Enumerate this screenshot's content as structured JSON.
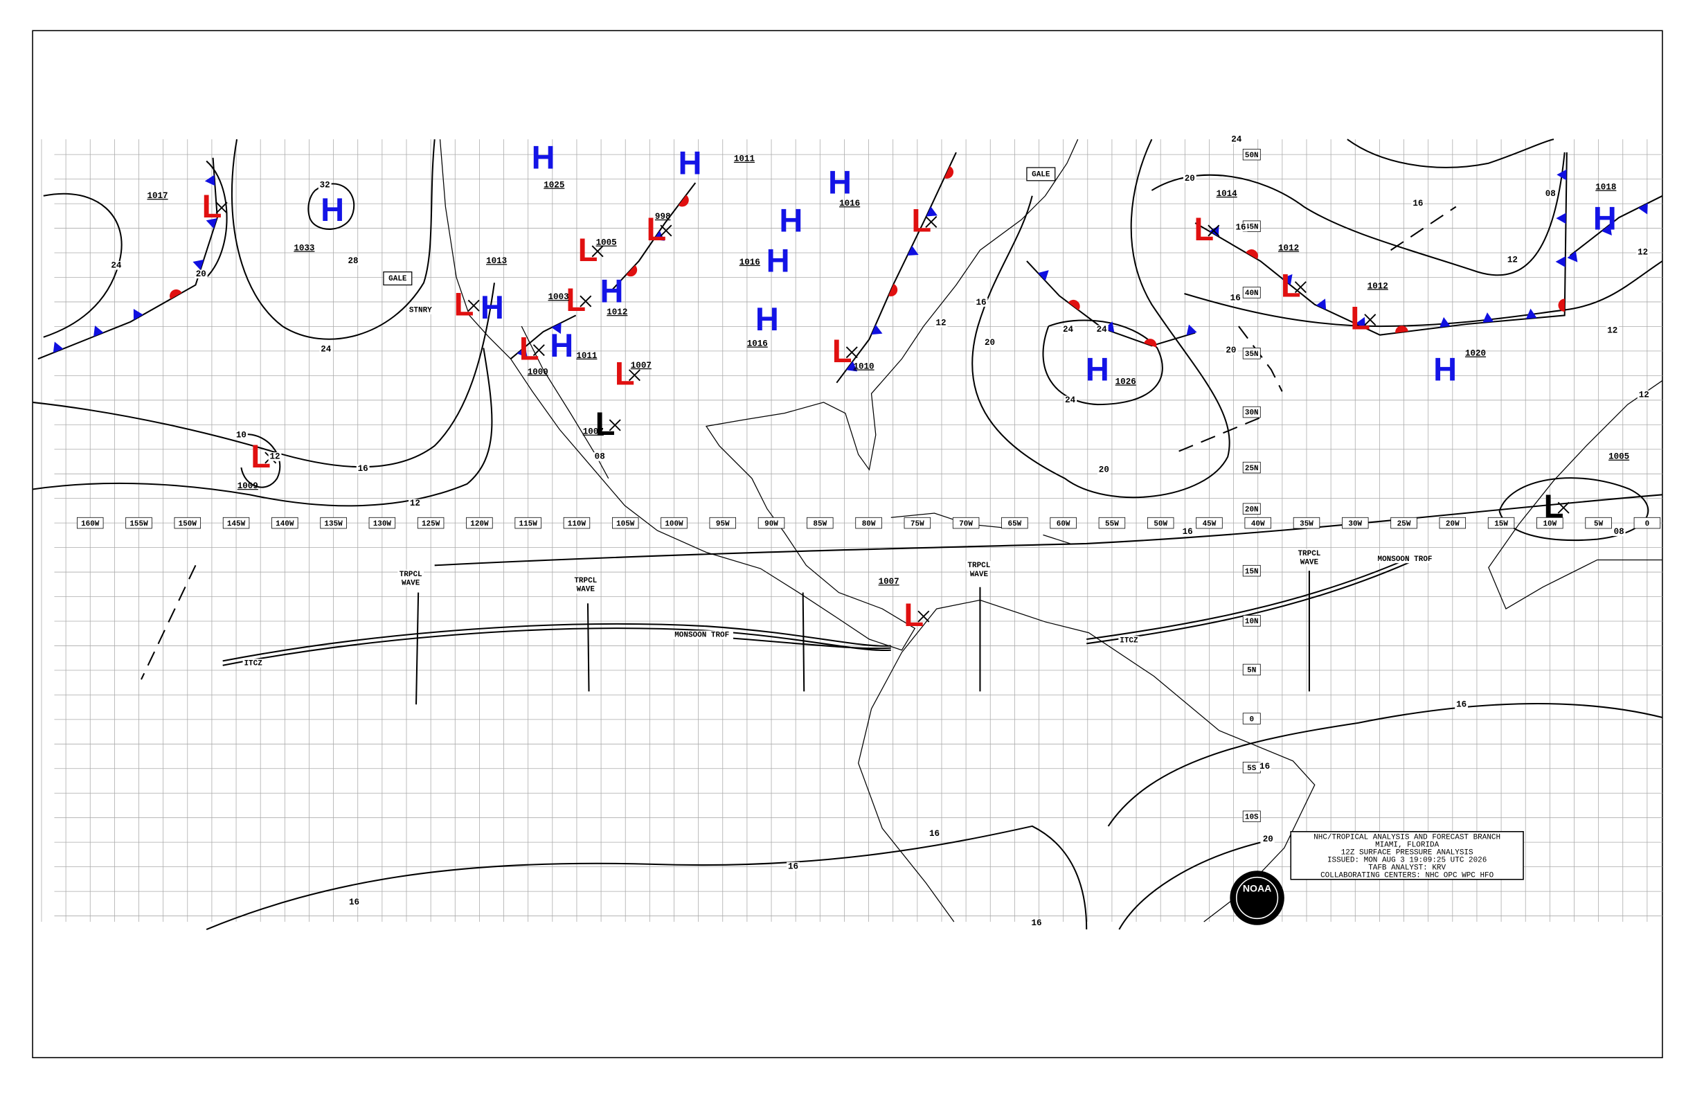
{
  "map": {
    "longitude_labels": [
      "160W",
      "155W",
      "150W",
      "145W",
      "140W",
      "135W",
      "130W",
      "125W",
      "120W",
      "115W",
      "110W",
      "105W",
      "100W",
      "95W",
      "90W",
      "85W",
      "80W",
      "75W",
      "70W",
      "65W",
      "60W",
      "55W",
      "50W",
      "45W",
      "40W",
      "35W",
      "30W",
      "25W",
      "20W",
      "15W",
      "10W",
      "5W",
      "0"
    ],
    "latitude_labels": [
      "50N",
      "45N",
      "40N",
      "35N",
      "30N",
      "25N",
      "20N",
      "15N",
      "10N",
      "5N",
      "0",
      "5S",
      "10S"
    ],
    "centers": [
      "H",
      "H",
      "H",
      "H",
      "H",
      "H",
      "H",
      "H",
      "H",
      "H",
      "H",
      "H",
      "H",
      "L",
      "L",
      "L",
      "L",
      "L",
      "L",
      "L",
      "L",
      "L",
      "L",
      "L",
      "L",
      "L",
      "L",
      "L",
      "L",
      "L"
    ],
    "pressure_labels": [
      "1017",
      "1033",
      "1013",
      "1025",
      "1003",
      "1012",
      "1005",
      "998",
      "1016",
      "1016",
      "1011",
      "1000",
      "1007",
      "1007",
      "1009",
      "1010",
      "1014",
      "1012",
      "1012",
      "1026",
      "1020",
      "1005",
      "1007",
      "1011",
      "1016",
      "1018"
    ],
    "isobar_labels": [
      "24",
      "20",
      "32",
      "28",
      "24",
      "16",
      "12",
      "10",
      "12",
      "08",
      "16",
      "20",
      "24",
      "24",
      "24",
      "20",
      "20",
      "16",
      "20",
      "16",
      "16",
      "12",
      "12",
      "08",
      "08",
      "16",
      "16",
      "20",
      "16",
      "16",
      "16",
      "16",
      "24",
      "12",
      "12",
      "12",
      "16"
    ],
    "feature_labels": [
      "TRPCL",
      "WAVE",
      "TRPCL",
      "WAVE",
      "TRPCL",
      "WAVE",
      "TRPCL",
      "WAVE",
      "MONSOON TROF",
      "MONSOON TROF",
      "ITCZ",
      "ITCZ",
      "STNRY",
      "GALE",
      "GALE"
    ]
  },
  "info_box": {
    "lines": [
      "NHC/TROPICAL ANALYSIS AND FORECAST BRANCH",
      "MIAMI, FLORIDA",
      "12Z SURFACE PRESSURE ANALYSIS",
      "ISSUED: MON AUG 3 19:09:25 UTC 2026",
      "TAFB ANALYST: KRV",
      "COLLABORATING CENTERS: NHC OPC WPC HFO"
    ]
  },
  "logo": "NOAA"
}
